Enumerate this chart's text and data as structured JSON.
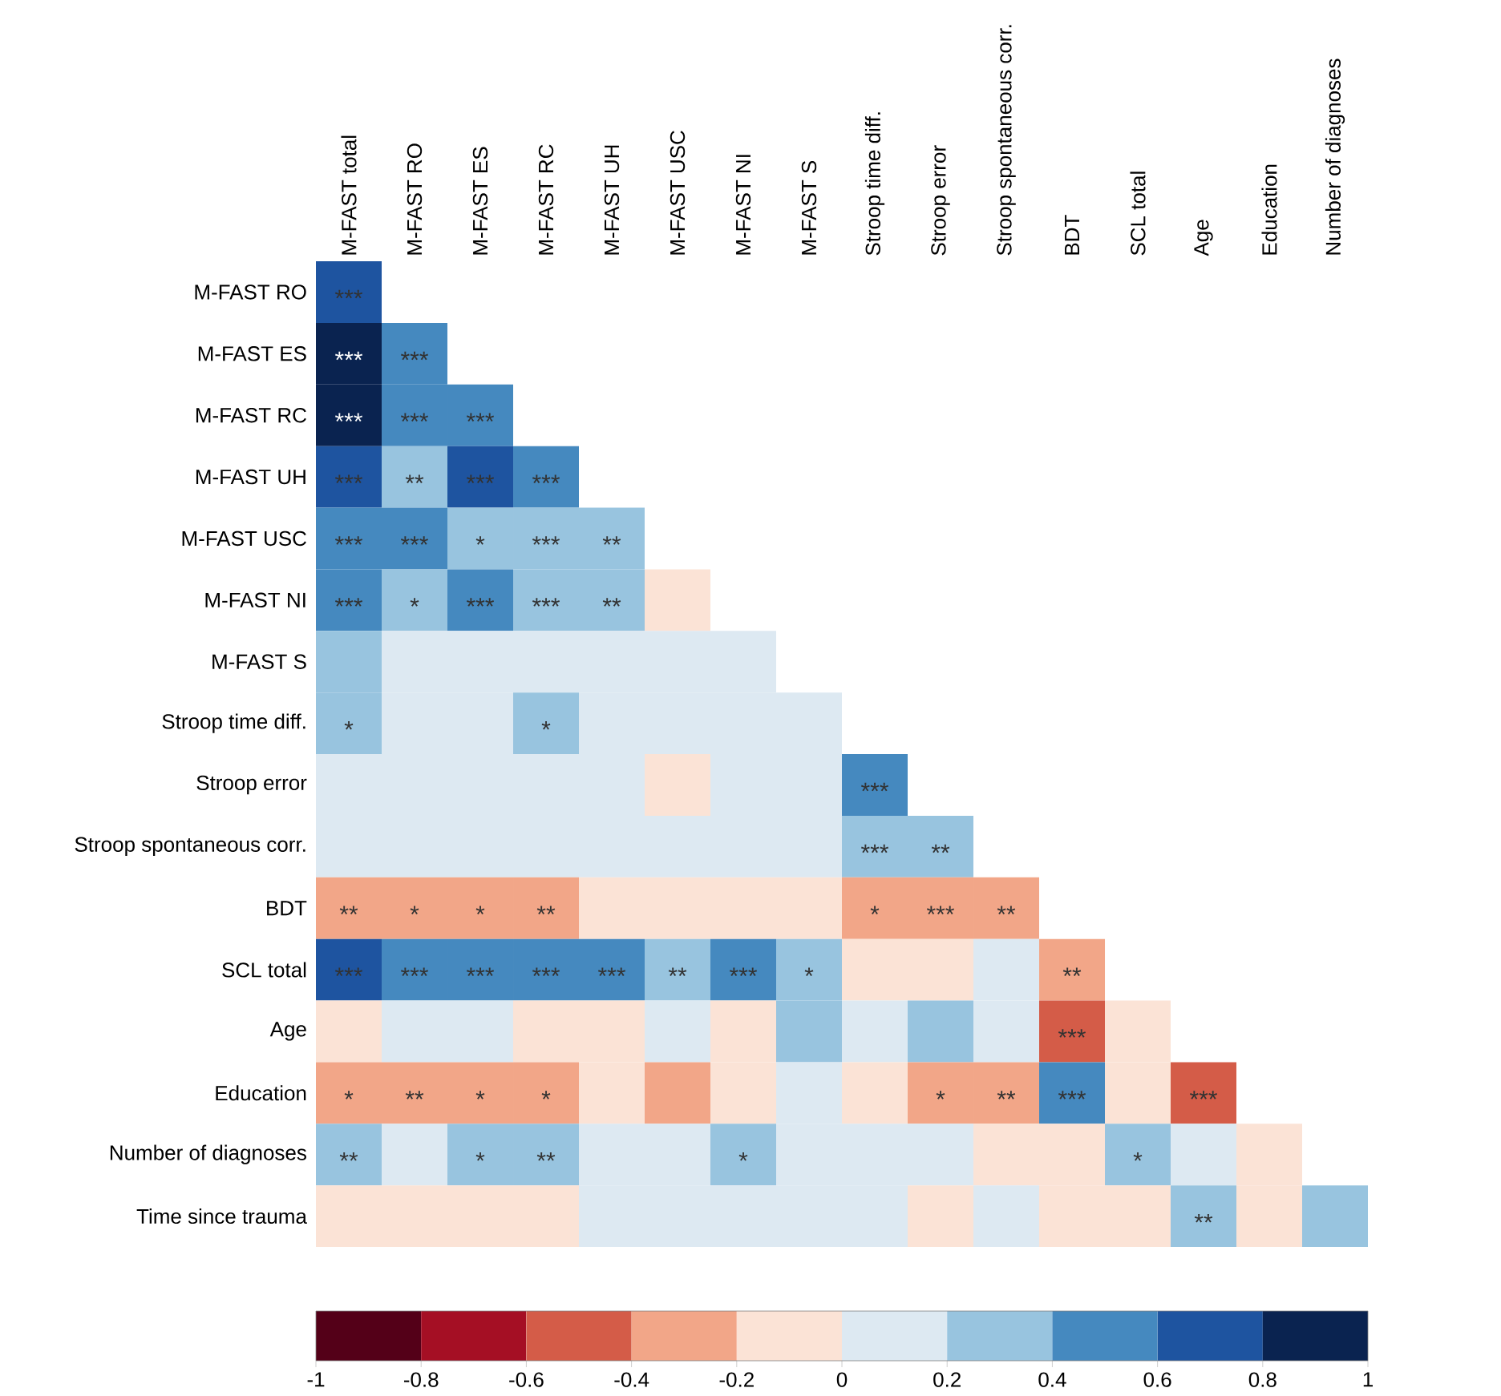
{
  "chart_data": {
    "type": "heatmap",
    "categories": [
      "M-FAST total",
      "M-FAST RO",
      "M-FAST ES",
      "M-FAST RC",
      "M-FAST UH",
      "M-FAST USC",
      "M-FAST NI",
      "M-FAST S",
      "Stroop time diff.",
      "Stroop error",
      "Stroop spontaneous corr.",
      "BDT",
      "SCL total",
      "Age",
      "Education",
      "Number of diagnoses"
    ],
    "y_categories": [
      "M-FAST RO",
      "M-FAST ES",
      "M-FAST RC",
      "M-FAST UH",
      "M-FAST USC",
      "M-FAST NI",
      "M-FAST S",
      "Stroop time diff.",
      "Stroop error",
      "Stroop spontaneous corr.",
      "BDT",
      "SCL total",
      "Age",
      "Education",
      "Number of diagnoses",
      "Time since trauma"
    ],
    "cells": [
      [
        0.7,
        null,
        null,
        null,
        null,
        null,
        null,
        null,
        null,
        null,
        null,
        null,
        null,
        null,
        null,
        null
      ],
      [
        0.9,
        0.5,
        null,
        null,
        null,
        null,
        null,
        null,
        null,
        null,
        null,
        null,
        null,
        null,
        null,
        null
      ],
      [
        0.9,
        0.5,
        0.5,
        null,
        null,
        null,
        null,
        null,
        null,
        null,
        null,
        null,
        null,
        null,
        null,
        null
      ],
      [
        0.7,
        0.3,
        0.7,
        0.5,
        null,
        null,
        null,
        null,
        null,
        null,
        null,
        null,
        null,
        null,
        null,
        null
      ],
      [
        0.5,
        0.5,
        0.3,
        0.3,
        0.3,
        null,
        null,
        null,
        null,
        null,
        null,
        null,
        null,
        null,
        null,
        null
      ],
      [
        0.5,
        0.3,
        0.5,
        0.3,
        0.3,
        -0.1,
        null,
        null,
        null,
        null,
        null,
        null,
        null,
        null,
        null,
        null
      ],
      [
        0.3,
        0.1,
        0.1,
        0.1,
        0.1,
        0.1,
        0.1,
        null,
        null,
        null,
        null,
        null,
        null,
        null,
        null,
        null
      ],
      [
        0.3,
        0.1,
        0.1,
        0.3,
        0.1,
        0.1,
        0.1,
        0.1,
        null,
        null,
        null,
        null,
        null,
        null,
        null,
        null
      ],
      [
        0.1,
        0.1,
        0.1,
        0.1,
        0.1,
        -0.1,
        0.1,
        0.1,
        0.5,
        null,
        null,
        null,
        null,
        null,
        null,
        null
      ],
      [
        0.1,
        0.1,
        0.1,
        0.1,
        0.1,
        0.1,
        0.1,
        0.1,
        0.3,
        0.3,
        null,
        null,
        null,
        null,
        null,
        null
      ],
      [
        -0.3,
        -0.3,
        -0.3,
        -0.3,
        -0.1,
        -0.1,
        -0.1,
        -0.1,
        -0.3,
        -0.3,
        -0.3,
        null,
        null,
        null,
        null,
        null
      ],
      [
        0.7,
        0.5,
        0.5,
        0.5,
        0.5,
        0.3,
        0.5,
        0.3,
        -0.1,
        -0.1,
        0.1,
        -0.3,
        null,
        null,
        null,
        null
      ],
      [
        -0.1,
        0.1,
        0.1,
        -0.1,
        -0.1,
        0.1,
        -0.1,
        0.3,
        0.1,
        0.3,
        0.1,
        -0.5,
        -0.1,
        null,
        null,
        null
      ],
      [
        -0.3,
        -0.3,
        -0.3,
        -0.3,
        -0.1,
        -0.3,
        -0.1,
        0.1,
        -0.1,
        -0.3,
        -0.3,
        0.5,
        -0.1,
        -0.5,
        null,
        null
      ],
      [
        0.3,
        0.1,
        0.3,
        0.3,
        0.1,
        0.1,
        0.3,
        0.1,
        0.1,
        0.1,
        -0.1,
        -0.1,
        0.3,
        0.1,
        -0.1,
        null
      ],
      [
        -0.1,
        -0.1,
        -0.1,
        -0.1,
        0.1,
        0.1,
        0.1,
        0.1,
        0.1,
        -0.1,
        0.1,
        -0.1,
        -0.1,
        0.3,
        -0.1,
        0.3
      ]
    ],
    "cell_labels": [
      [
        "***",
        null,
        null,
        null,
        null,
        null,
        null,
        null,
        null,
        null,
        null,
        null,
        null,
        null,
        null,
        null
      ],
      [
        "***",
        "***",
        null,
        null,
        null,
        null,
        null,
        null,
        null,
        null,
        null,
        null,
        null,
        null,
        null,
        null
      ],
      [
        "***",
        "***",
        "***",
        null,
        null,
        null,
        null,
        null,
        null,
        null,
        null,
        null,
        null,
        null,
        null,
        null
      ],
      [
        "***",
        "**",
        "***",
        "***",
        null,
        null,
        null,
        null,
        null,
        null,
        null,
        null,
        null,
        null,
        null,
        null
      ],
      [
        "***",
        "***",
        "*",
        "***",
        "**",
        null,
        null,
        null,
        null,
        null,
        null,
        null,
        null,
        null,
        null,
        null
      ],
      [
        "***",
        "*",
        "***",
        "***",
        "**",
        null,
        null,
        null,
        null,
        null,
        null,
        null,
        null,
        null,
        null,
        null
      ],
      [
        null,
        null,
        null,
        null,
        null,
        null,
        null,
        null,
        null,
        null,
        null,
        null,
        null,
        null,
        null,
        null
      ],
      [
        "*",
        null,
        null,
        "*",
        null,
        null,
        null,
        null,
        null,
        null,
        null,
        null,
        null,
        null,
        null,
        null
      ],
      [
        null,
        null,
        null,
        null,
        null,
        null,
        null,
        null,
        "***",
        null,
        null,
        null,
        null,
        null,
        null,
        null
      ],
      [
        null,
        null,
        null,
        null,
        null,
        null,
        null,
        null,
        "***",
        "**",
        null,
        null,
        null,
        null,
        null,
        null
      ],
      [
        "**",
        "*",
        "*",
        "**",
        null,
        null,
        null,
        null,
        "*",
        "***",
        "**",
        null,
        null,
        null,
        null,
        null
      ],
      [
        "***",
        "***",
        "***",
        "***",
        "***",
        "**",
        "***",
        "*",
        null,
        null,
        null,
        "**",
        null,
        null,
        null,
        null
      ],
      [
        null,
        null,
        null,
        null,
        null,
        null,
        null,
        null,
        null,
        null,
        null,
        "***",
        null,
        null,
        null,
        null
      ],
      [
        "*",
        "**",
        "*",
        "*",
        null,
        null,
        null,
        null,
        null,
        "*",
        "**",
        "***",
        null,
        "***",
        null,
        null
      ],
      [
        "**",
        null,
        "*",
        "**",
        null,
        null,
        "*",
        null,
        null,
        null,
        null,
        null,
        "*",
        null,
        null,
        null
      ],
      [
        null,
        null,
        null,
        null,
        null,
        null,
        null,
        null,
        null,
        null,
        null,
        null,
        null,
        "**",
        null,
        null
      ]
    ],
    "clim": [
      -1,
      1
    ],
    "cticks": [
      {
        "value": -1,
        "label": "-1"
      },
      {
        "value": -0.8,
        "label": "-0.8"
      },
      {
        "value": -0.6,
        "label": "-0.6"
      },
      {
        "value": -0.4,
        "label": "-0.4"
      },
      {
        "value": -0.2,
        "label": "-0.2"
      },
      {
        "value": 0,
        "label": "0"
      },
      {
        "value": 0.2,
        "label": "0.2"
      },
      {
        "value": 0.4,
        "label": "0.4"
      },
      {
        "value": 0.6,
        "label": "0.6"
      },
      {
        "value": 0.8,
        "label": "0.8"
      },
      {
        "value": 1,
        "label": "1"
      }
    ],
    "colors": [
      "#540018",
      "#a50f24",
      "#d45c48",
      "#f2a688",
      "#fbe3d6",
      "#dde9f2",
      "#98c4df",
      "#4589bf",
      "#1e54a0",
      "#0a2350"
    ]
  }
}
